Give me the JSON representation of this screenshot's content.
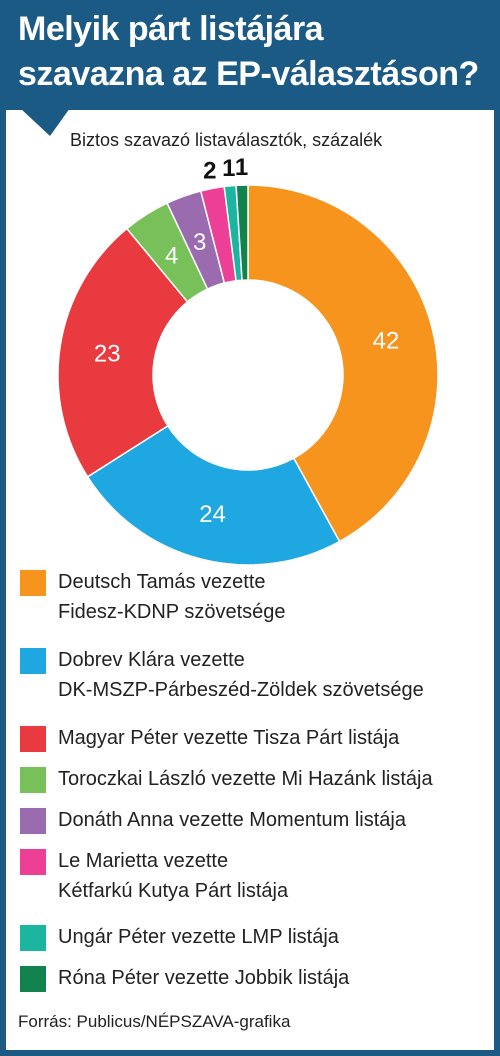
{
  "header": {
    "title_line1": "Melyik párt listájára",
    "title_line2": "szavazna az EP-választáson?"
  },
  "subtitle": "Biztos szavazó listaválasztók, százalék",
  "source": "Forrás: Publicus/NÉPSZAVA-grafika",
  "chart_data": {
    "type": "pie",
    "donut": true,
    "labels": [
      "Deutsch Tamás vezette Fidesz-KDNP szövetsége",
      "Dobrev Klára vezette DK-MSZP-Párbeszéd-Zöldek szövetsége",
      "Magyar Péter vezette Tisza Párt listája",
      "Toroczkai László vezette Mi Hazánk listája",
      "Donáth Anna vezette Momentum listája",
      "Le Marietta vezette Kétfarkú Kutya Párt listája",
      "Ungár Péter vezette LMP listája",
      "Róna Péter vezette Jobbik listája"
    ],
    "values": [
      42,
      24,
      23,
      4,
      3,
      2,
      1,
      1
    ],
    "colors": [
      "#f7941d",
      "#1ea7e1",
      "#e83a3f",
      "#78c05a",
      "#9b6bb0",
      "#ec3f95",
      "#1bb5a0",
      "#12824f"
    ],
    "value_labels": [
      "42",
      "24",
      "23",
      "4",
      "3",
      "2",
      "1",
      "1"
    ]
  },
  "legend": [
    {
      "line1": "Deutsch Tamás vezette",
      "line2": "Fidesz-KDNP szövetsége",
      "color": "#f7941d"
    },
    {
      "line1": "Dobrev Klára vezette",
      "line2": "DK-MSZP-Párbeszéd-Zöldek szövetsége",
      "color": "#1ea7e1"
    },
    {
      "line1": "Magyar Péter vezette Tisza Párt listája",
      "line2": "",
      "color": "#e83a3f"
    },
    {
      "line1": "Toroczkai László vezette Mi Hazánk listája",
      "line2": "",
      "color": "#78c05a"
    },
    {
      "line1": "Donáth Anna vezette Momentum listája",
      "line2": "",
      "color": "#9b6bb0"
    },
    {
      "line1": "Le Marietta vezette",
      "line2": "Kétfarkú Kutya Párt listája",
      "color": "#ec3f95"
    },
    {
      "line1": "Ungár Péter vezette LMP listája",
      "line2": "",
      "color": "#1bb5a0"
    },
    {
      "line1": "Róna Péter vezette Jobbik listája",
      "line2": "",
      "color": "#12824f"
    }
  ]
}
